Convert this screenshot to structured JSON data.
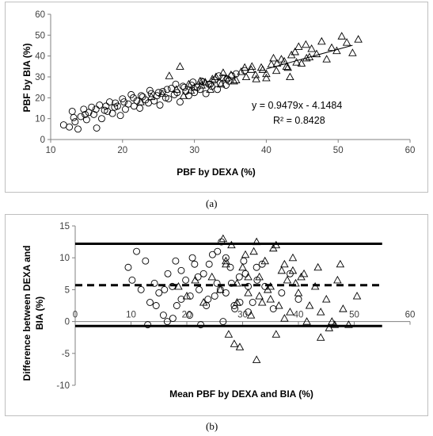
{
  "chart_data": [
    {
      "panel_label": "(a)",
      "type": "scatter",
      "xlabel": "PBF by DEXA (%)",
      "ylabel": "PBF by BIA (%)",
      "xlim": [
        10,
        60
      ],
      "ylim": [
        0,
        60
      ],
      "xticks": [
        10,
        20,
        30,
        40,
        50,
        60
      ],
      "yticks": [
        0,
        10,
        20,
        30,
        40,
        50,
        60
      ],
      "grid": false,
      "series": [
        {
          "marker": "circle",
          "x": [
            11.8,
            12.6,
            13.0,
            13.4,
            13.8,
            14.2,
            14.6,
            15.0,
            15.3,
            15.7,
            16.0,
            16.4,
            16.8,
            17.1,
            17.5,
            17.9,
            18.2,
            18.6,
            18.9,
            19.3,
            19.7,
            20.0,
            20.4,
            20.8,
            21.2,
            21.6,
            22.0,
            22.4,
            22.8,
            23.2,
            23.6,
            24.0,
            24.4,
            24.8,
            25.2,
            25.6,
            26.0,
            26.4,
            26.8,
            27.2,
            27.6,
            28.0,
            28.4,
            28.8,
            29.2,
            29.6,
            30.0,
            30.4,
            30.8,
            31.2,
            31.6,
            32.0,
            32.4,
            32.8,
            33.2,
            33.6,
            34.0,
            34.4,
            34.8,
            35.2,
            13.2,
            14.8,
            16.3,
            17.7,
            19.0,
            20.2,
            21.5,
            22.6,
            23.8,
            25.0,
            26.2,
            27.4,
            28.6,
            29.8,
            31.0,
            32.2,
            33.4,
            34.6,
            35.8,
            37.0
          ],
          "y": [
            7.0,
            6.0,
            13.5,
            8.5,
            5.0,
            11.0,
            14.5,
            9.5,
            13.0,
            15.5,
            12.0,
            5.5,
            16.5,
            10.0,
            14.0,
            13.5,
            18.0,
            12.5,
            15.5,
            16.0,
            11.5,
            19.5,
            14.5,
            17.0,
            21.5,
            16.0,
            18.5,
            15.0,
            20.5,
            19.0,
            17.5,
            22.0,
            18.5,
            21.0,
            16.5,
            23.0,
            20.0,
            19.5,
            24.5,
            21.5,
            22.5,
            18.0,
            25.5,
            23.0,
            21.0,
            26.0,
            22.5,
            25.0,
            24.0,
            27.5,
            22.0,
            26.5,
            25.5,
            28.5,
            24.0,
            27.0,
            29.5,
            26.0,
            28.0,
            30.5,
            10.5,
            12.0,
            14.5,
            16.0,
            17.5,
            18.0,
            20.0,
            21.0,
            23.5,
            22.5,
            24.0,
            26.5,
            25.0,
            27.5,
            28.0,
            26.5,
            30.5,
            29.0,
            31.5,
            33.0
          ]
        },
        {
          "marker": "triangle",
          "x": [
            22.5,
            24.0,
            25.5,
            26.5,
            27.5,
            28.5,
            29.2,
            30.0,
            30.8,
            31.5,
            32.2,
            33.0,
            33.7,
            34.4,
            35.1,
            35.8,
            36.5,
            37.2,
            37.9,
            38.6,
            39.3,
            40.0,
            40.7,
            41.4,
            42.1,
            42.8,
            43.5,
            44.2,
            44.9,
            45.6,
            46.3,
            47.0,
            47.7,
            48.4,
            49.1,
            49.8,
            50.5,
            51.2,
            52.0,
            52.8,
            29.5,
            31.0,
            32.5,
            34.0,
            35.5,
            37.0,
            38.5,
            40.0,
            41.5,
            43.0,
            44.5,
            46.0,
            38.0,
            39.5,
            41.0,
            42.5,
            44.0,
            45.5,
            43.3,
            28.0
          ],
          "y": [
            18.0,
            20.5,
            22.0,
            30.5,
            24.0,
            21.0,
            26.5,
            25.0,
            28.0,
            27.5,
            24.0,
            30.0,
            26.5,
            29.5,
            31.0,
            28.5,
            32.5,
            30.0,
            33.5,
            29.0,
            34.5,
            31.5,
            36.0,
            33.0,
            38.5,
            35.0,
            40.5,
            37.0,
            36.5,
            39.0,
            43.5,
            41.0,
            47.0,
            38.5,
            44.0,
            42.5,
            49.5,
            46.5,
            41.5,
            48.0,
            23.5,
            26.0,
            29.0,
            32.0,
            28.0,
            34.5,
            31.0,
            29.5,
            36.5,
            34.5,
            44.5,
            39.5,
            35.0,
            33.5,
            39.0,
            37.5,
            42.0,
            45.5,
            30.0,
            35.0
          ]
        }
      ],
      "trendline": {
        "slope": 0.9479,
        "intercept": -4.1484,
        "x_range": [
          40.0,
          52.0
        ]
      },
      "annotations": [
        "y = 0.9479x - 4.1484",
        "R² = 0.8428"
      ]
    },
    {
      "panel_label": "(b)",
      "type": "scatter",
      "xlabel": "Mean PBF by DEXA and BIA (%)",
      "ylabel": "Difference between DEXA and BIA (%)",
      "xlim": [
        0,
        60
      ],
      "ylim": [
        -10,
        15
      ],
      "xticks": [
        0,
        10,
        20,
        30,
        40,
        50,
        60
      ],
      "yticks": [
        -10,
        -5,
        0,
        5,
        10,
        15
      ],
      "grid": false,
      "reference_lines": [
        {
          "y": 12.2,
          "style": "solid",
          "x_range": [
            0,
            55
          ]
        },
        {
          "y": 5.7,
          "style": "dashed",
          "x_range": [
            0,
            55
          ]
        },
        {
          "y": -0.7,
          "style": "solid",
          "x_range": [
            0,
            55
          ]
        }
      ],
      "series": [
        {
          "marker": "circle",
          "x": [
            9.5,
            10.2,
            11.0,
            11.8,
            12.6,
            13.4,
            14.2,
            15.0,
            15.8,
            16.6,
            17.4,
            18.2,
            19.0,
            19.8,
            20.6,
            21.4,
            22.2,
            23.0,
            23.8,
            24.6,
            25.4,
            26.2,
            27.0,
            27.8,
            28.6,
            29.4,
            30.2,
            31.0,
            31.8,
            32.6,
            13.0,
            14.5,
            16.0,
            17.5,
            19.0,
            20.5,
            22.0,
            23.5,
            25.0,
            26.5,
            28.0,
            29.5,
            31.0,
            32.5,
            34.0,
            35.5,
            37.0,
            38.5,
            40.0,
            21.0,
            22.5,
            24.0,
            25.5,
            27.0,
            18.0,
            16.5,
            26.0,
            28.5,
            30.5,
            33.5
          ],
          "y": [
            8.5,
            6.5,
            11.0,
            5.0,
            9.5,
            3.0,
            6.0,
            4.5,
            1.0,
            7.5,
            5.5,
            2.5,
            8.0,
            6.5,
            4.0,
            9.0,
            5.0,
            7.5,
            3.5,
            10.5,
            6.0,
            12.5,
            4.5,
            8.5,
            2.0,
            7.0,
            9.5,
            5.5,
            3.0,
            6.5,
            -0.5,
            2.5,
            5.0,
            0.5,
            3.5,
            1.0,
            7.0,
            2.5,
            4.0,
            0.0,
            6.0,
            3.0,
            1.5,
            8.5,
            5.5,
            2.0,
            4.5,
            7.5,
            3.5,
            10.0,
            -0.5,
            9.0,
            11.0,
            10.0,
            9.5,
            0.0,
            5.0,
            2.5,
            7.5,
            9.0
          ]
        },
        {
          "marker": "triangle",
          "x": [
            18.5,
            20.0,
            21.5,
            23.0,
            24.5,
            26.0,
            27.0,
            28.0,
            29.0,
            30.0,
            31.0,
            32.0,
            33.0,
            34.0,
            35.0,
            36.0,
            37.0,
            38.0,
            39.0,
            40.0,
            41.0,
            42.0,
            43.0,
            44.0,
            45.0,
            46.0,
            47.0,
            48.0,
            49.0,
            50.5,
            27.5,
            29.5,
            31.5,
            33.5,
            35.5,
            37.5,
            39.5,
            41.5,
            43.5,
            45.5,
            26.5,
            28.5,
            30.5,
            32.5,
            34.5,
            36.5,
            38.5,
            40.5,
            32.5,
            27.0,
            29.0,
            31.0,
            33.0,
            36.0,
            47.5,
            46.5,
            44.0,
            35.0,
            37.5,
            39.0
          ],
          "y": [
            5.5,
            4.0,
            6.5,
            3.0,
            7.0,
            5.0,
            9.5,
            12.0,
            6.0,
            8.5,
            4.5,
            11.0,
            7.0,
            9.5,
            5.5,
            12.0,
            8.0,
            6.5,
            10.0,
            4.5,
            7.5,
            2.5,
            5.5,
            1.5,
            3.5,
            0.0,
            6.5,
            2.0,
            -0.5,
            4.0,
            -2.0,
            -4.0,
            1.0,
            3.0,
            11.5,
            9.0,
            6.0,
            0.0,
            8.5,
            -1.0,
            13.0,
            -3.5,
            10.5,
            -6.0,
            5.0,
            2.5,
            1.5,
            7.0,
            12.5,
            9.0,
            3.0,
            7.0,
            4.0,
            -2.0,
            9.0,
            -0.5,
            -2.5,
            3.5,
            0.5,
            8.0
          ]
        }
      ]
    }
  ],
  "captions": {
    "a": "(a)",
    "b": "(b)"
  }
}
